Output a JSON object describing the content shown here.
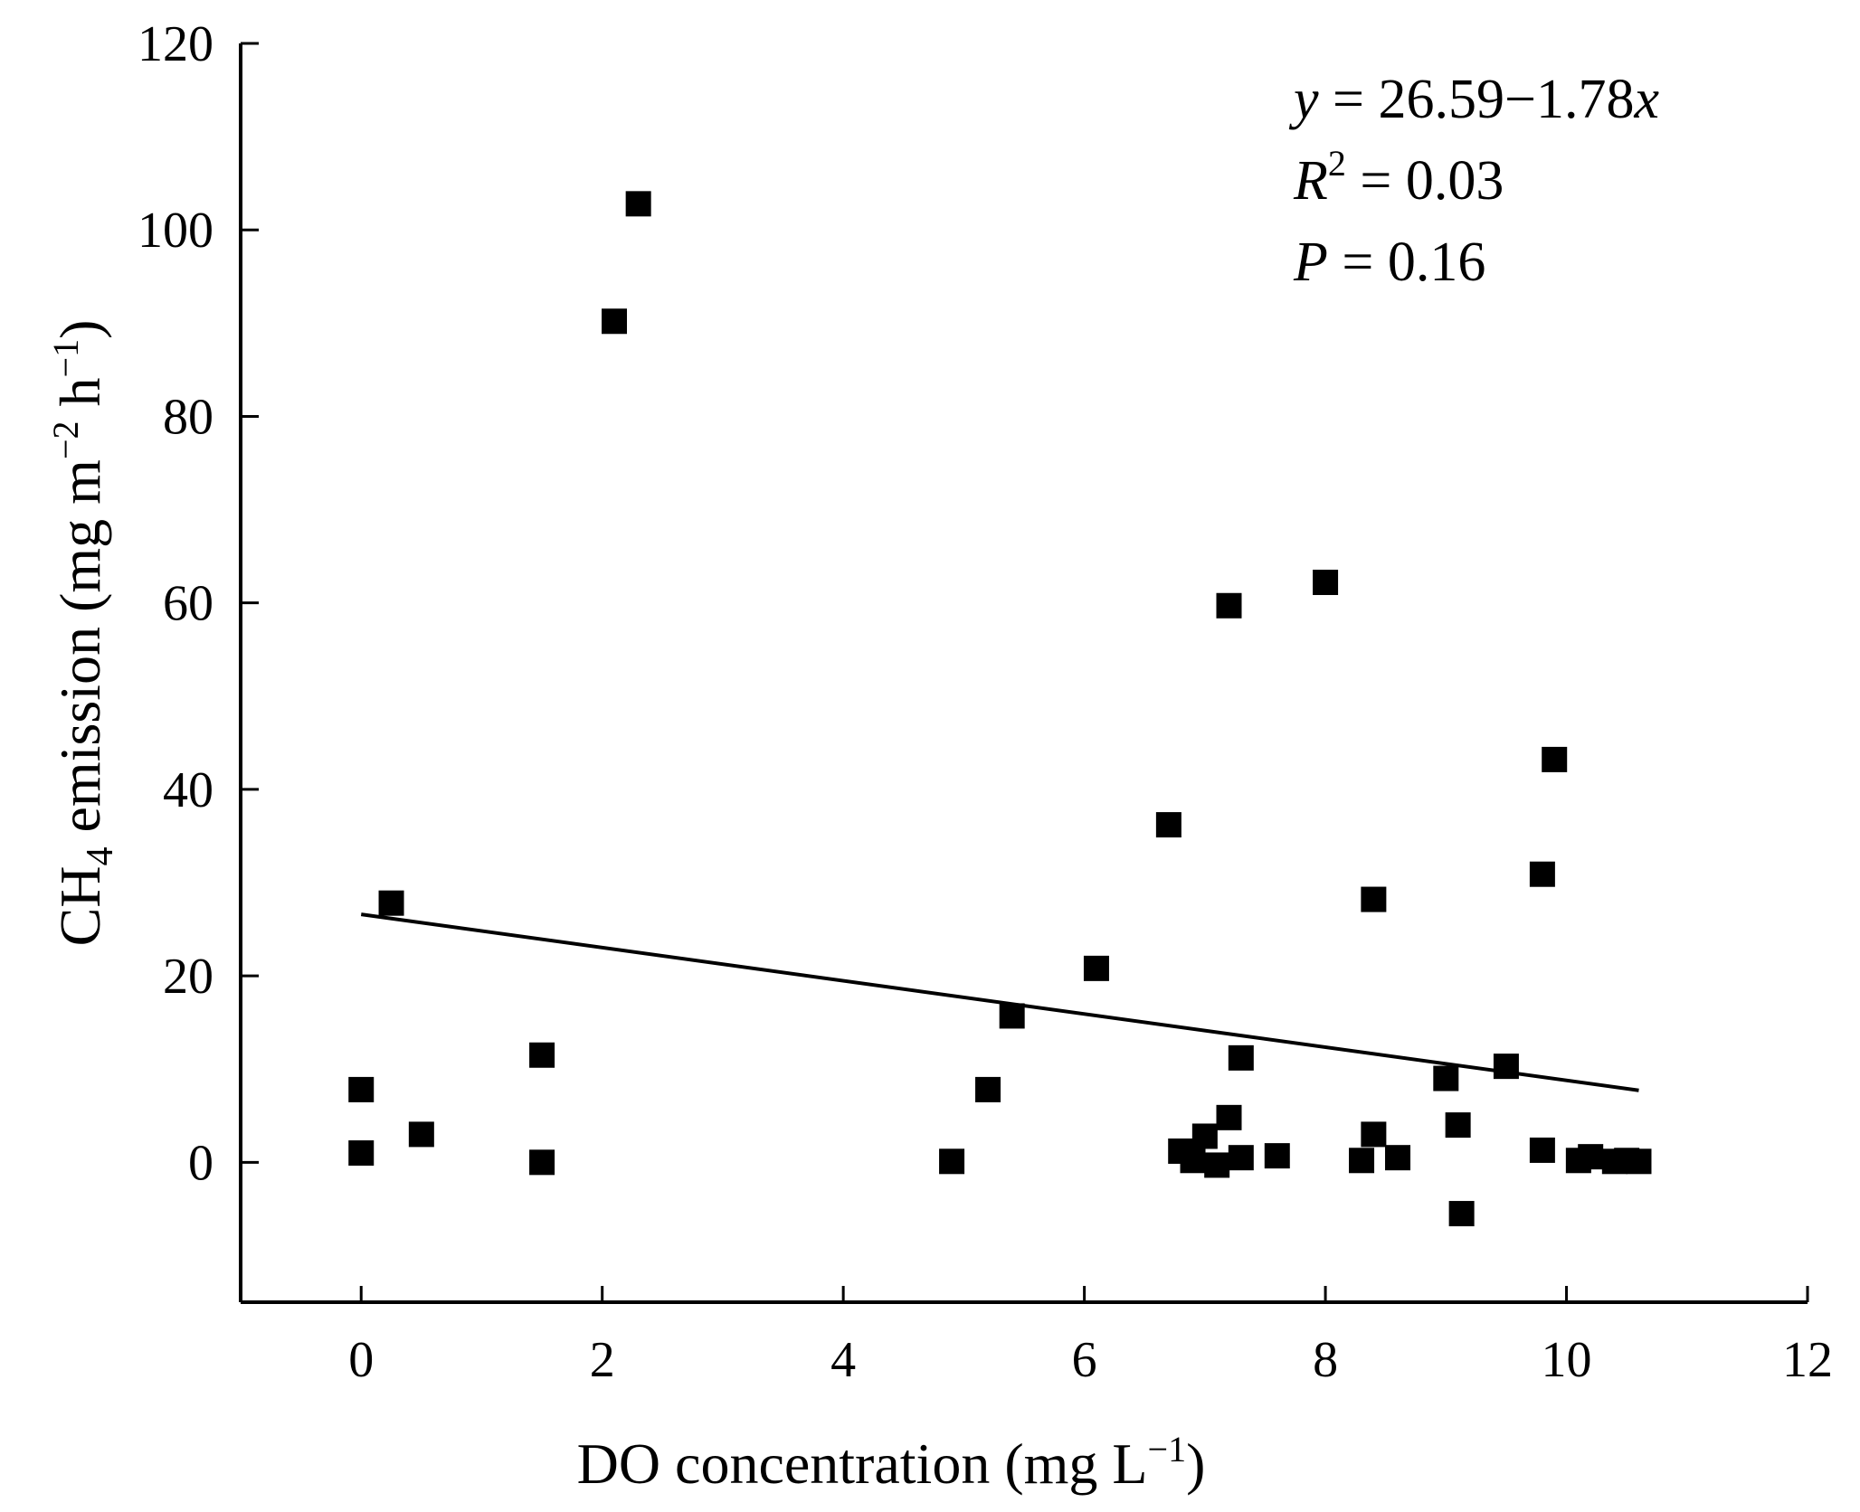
{
  "chart_data": {
    "type": "scatter",
    "xlabel": {
      "main": "DO concentration (mg L",
      "sup": "−1",
      "end": ")"
    },
    "ylabel": {
      "pre": "CH",
      "sub": "4",
      "mid": " emission (mg m",
      "sup1": "−2",
      "mid2": " h",
      "sup2": "−1",
      "end": ")"
    },
    "xlim": [
      -1,
      12
    ],
    "ylim": [
      -15,
      120
    ],
    "xticks": [
      0,
      2,
      4,
      6,
      8,
      10,
      12
    ],
    "yticks": [
      0,
      20,
      40,
      60,
      80,
      100,
      120
    ],
    "points": [
      {
        "x": 0.0,
        "y": 7.8
      },
      {
        "x": 0.0,
        "y": 1.0
      },
      {
        "x": 0.25,
        "y": 27.8
      },
      {
        "x": 0.5,
        "y": 3.0
      },
      {
        "x": 1.5,
        "y": 11.5
      },
      {
        "x": 1.5,
        "y": 0.0
      },
      {
        "x": 2.1,
        "y": 90.2
      },
      {
        "x": 2.3,
        "y": 102.8
      },
      {
        "x": 4.9,
        "y": 0.1
      },
      {
        "x": 5.2,
        "y": 7.8
      },
      {
        "x": 5.4,
        "y": 15.7
      },
      {
        "x": 6.1,
        "y": 20.8
      },
      {
        "x": 6.7,
        "y": 36.2
      },
      {
        "x": 6.8,
        "y": 1.2
      },
      {
        "x": 6.9,
        "y": 0.2
      },
      {
        "x": 7.0,
        "y": 2.8
      },
      {
        "x": 7.1,
        "y": -0.3
      },
      {
        "x": 7.2,
        "y": 4.8
      },
      {
        "x": 7.2,
        "y": 59.7
      },
      {
        "x": 7.3,
        "y": 11.2
      },
      {
        "x": 7.3,
        "y": 0.5
      },
      {
        "x": 7.6,
        "y": 0.7
      },
      {
        "x": 8.0,
        "y": 62.2
      },
      {
        "x": 8.3,
        "y": 0.2
      },
      {
        "x": 8.4,
        "y": 28.2
      },
      {
        "x": 8.4,
        "y": 3.0
      },
      {
        "x": 8.6,
        "y": 0.5
      },
      {
        "x": 9.0,
        "y": 9.0
      },
      {
        "x": 9.1,
        "y": 4.0
      },
      {
        "x": 9.13,
        "y": -5.5
      },
      {
        "x": 9.5,
        "y": 10.3
      },
      {
        "x": 9.8,
        "y": 30.9
      },
      {
        "x": 9.8,
        "y": 1.3
      },
      {
        "x": 9.9,
        "y": 43.2
      },
      {
        "x": 10.1,
        "y": 0.2
      },
      {
        "x": 10.2,
        "y": 0.6
      },
      {
        "x": 10.4,
        "y": 0.1
      },
      {
        "x": 10.5,
        "y": 0.2
      },
      {
        "x": 10.6,
        "y": 0.1
      }
    ],
    "regression": {
      "intercept": 26.59,
      "slope": -1.78,
      "x_range": [
        0.0,
        10.6
      ],
      "equation": {
        "y": "y",
        "eq": " = 26.59−1.78",
        "x": "x"
      },
      "r2": {
        "r": "R",
        "sup": "2",
        "rest": " = 0.03"
      },
      "p": {
        "p": "P",
        "rest": " = 0.16"
      }
    },
    "grid": false,
    "marker": "square"
  }
}
